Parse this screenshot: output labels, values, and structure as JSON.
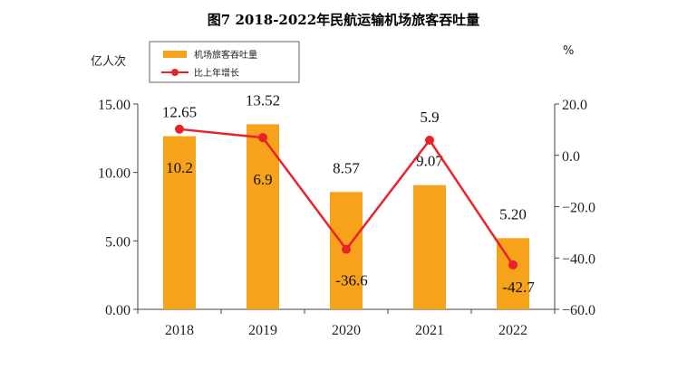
{
  "chart_data": {
    "type": "bar",
    "title": "图7 2018-2022年民航运输机场旅客吞吐量",
    "categories": [
      "2018",
      "2019",
      "2020",
      "2021",
      "2022"
    ],
    "y_left_label": "亿人次",
    "y_right_label": "%",
    "y_left_lim": [
      0,
      15
    ],
    "y_left_ticks": [
      "0.00",
      "5.00",
      "10.00",
      "15.00"
    ],
    "y_right_lim": [
      -60,
      20
    ],
    "y_right_ticks": [
      "20.0",
      "0.0",
      "-20.0",
      "-40.0",
      "-60.0"
    ],
    "legend_position": "top-left",
    "grid": false,
    "series": [
      {
        "name": "机场旅客吞吐量",
        "type": "bar",
        "axis": "left",
        "color": "#F7A21B",
        "values": [
          12.65,
          13.52,
          8.57,
          9.07,
          5.2
        ],
        "labels": [
          "12.65",
          "13.52",
          "8.57",
          "9.07",
          "5.20"
        ]
      },
      {
        "name": "比上年增长",
        "type": "line",
        "axis": "right",
        "color": "#E8222C",
        "values": [
          10.2,
          6.9,
          -36.6,
          5.9,
          -42.7
        ],
        "labels": [
          "10.2",
          "6.9",
          "-36.6",
          "5.9",
          "-42.7"
        ]
      }
    ]
  }
}
